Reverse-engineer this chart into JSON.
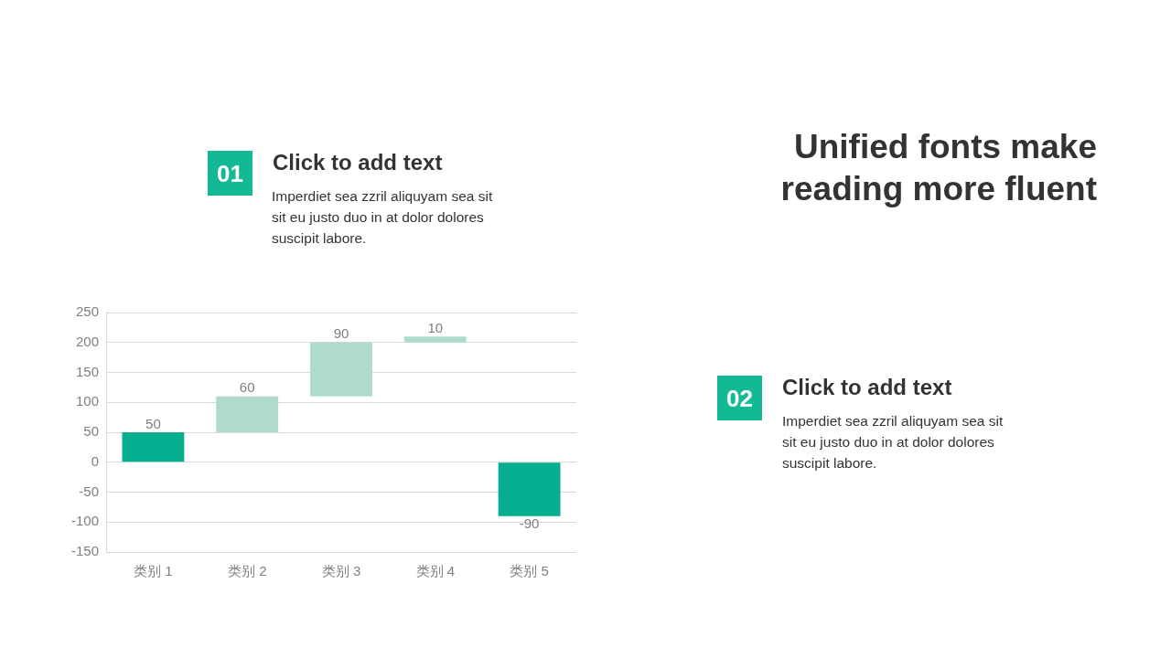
{
  "chart_data": {
    "type": "bar",
    "title": "Unified fonts make reading more fluent",
    "annotations": [
      "01",
      "Click to add text",
      "Imperdiet sea zzril aliquyam sea sit sit eu justo duo in at dolor dolores suscipit labore.",
      "02",
      "Click to add text",
      "Imperdiet sea zzril aliquyam sea sit sit eu justo duo in at dolor dolores suscipit labore."
    ],
    "categories": [
      "类别 1",
      "类别 2",
      "类别 3",
      "类别 4",
      "类别 5"
    ],
    "values": [
      50,
      60,
      90,
      10,
      -90
    ],
    "base": [
      0,
      50,
      110,
      200,
      0
    ],
    "colors": [
      "#06ae90",
      "#afdbcd",
      "#afdbcd",
      "#afdbcd",
      "#06ae90"
    ],
    "ylim": [
      -150,
      250
    ],
    "yticks": [
      -150,
      -100,
      -50,
      0,
      50,
      100,
      150,
      200,
      250
    ],
    "grid": "y",
    "data_labels": true
  }
}
